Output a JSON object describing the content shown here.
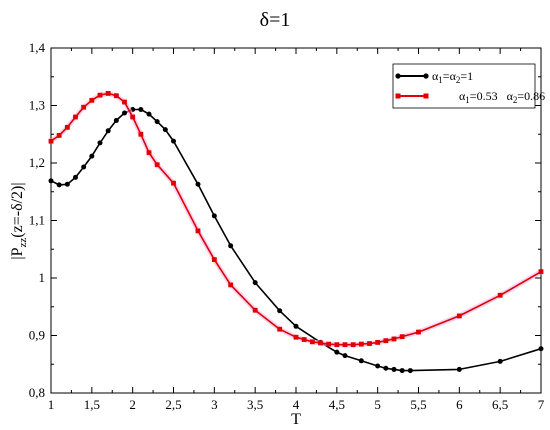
{
  "chart_data": {
    "type": "line",
    "title": "δ=1",
    "xlabel": "T",
    "ylabel": "|P_zz(z=-δ/2)|",
    "xlim": [
      1,
      7
    ],
    "ylim": [
      0.8,
      1.4
    ],
    "xticks": [
      1,
      1.5,
      2,
      2.5,
      3,
      3.5,
      4,
      4.5,
      5,
      5.5,
      6,
      6.5,
      7
    ],
    "xtick_labels": [
      "1",
      "1,5",
      "2",
      "2,5",
      "3",
      "3,5",
      "4",
      "4,5",
      "5",
      "5,5",
      "6",
      "6,5",
      "7"
    ],
    "yticks": [
      0.8,
      0.9,
      1.0,
      1.1,
      1.2,
      1.3,
      1.4
    ],
    "ytick_labels": [
      "0,8",
      "0,9",
      "1",
      "1,1",
      "1,2",
      "1,3",
      "1,4"
    ],
    "grid": false,
    "legend_position": "top-right",
    "series": [
      {
        "name": "α1=α2=1",
        "color": "#000000",
        "marker": "circle",
        "x": [
          1.0,
          1.1,
          1.2,
          1.3,
          1.4,
          1.5,
          1.6,
          1.7,
          1.8,
          1.9,
          2.0,
          2.1,
          2.2,
          2.3,
          2.4,
          2.5,
          2.8,
          3.0,
          3.2,
          3.5,
          3.8,
          4.0,
          4.3,
          4.5,
          4.6,
          4.8,
          5.0,
          5.1,
          5.2,
          5.3,
          5.4,
          6.0,
          6.5,
          7.0
        ],
        "y": [
          1.169,
          1.162,
          1.163,
          1.175,
          1.193,
          1.212,
          1.235,
          1.256,
          1.274,
          1.287,
          1.293,
          1.293,
          1.285,
          1.272,
          1.258,
          1.238,
          1.163,
          1.108,
          1.056,
          0.992,
          0.943,
          0.916,
          0.888,
          0.871,
          0.865,
          0.856,
          0.847,
          0.843,
          0.841,
          0.839,
          0.839,
          0.841,
          0.855,
          0.877
        ]
      },
      {
        "name": "α1=0.53   α2=0.86",
        "color": "#e00000",
        "marker": "square",
        "x": [
          1.0,
          1.1,
          1.2,
          1.3,
          1.4,
          1.5,
          1.6,
          1.7,
          1.8,
          1.9,
          2.0,
          2.1,
          2.2,
          2.3,
          2.5,
          2.8,
          3.0,
          3.2,
          3.5,
          3.8,
          4.0,
          4.1,
          4.2,
          4.3,
          4.4,
          4.5,
          4.6,
          4.7,
          4.8,
          4.9,
          5.0,
          5.1,
          5.2,
          5.3,
          5.5,
          6.0,
          6.5,
          7.0
        ],
        "y": [
          1.238,
          1.248,
          1.262,
          1.28,
          1.297,
          1.309,
          1.318,
          1.321,
          1.317,
          1.306,
          1.28,
          1.25,
          1.218,
          1.197,
          1.165,
          1.082,
          1.032,
          0.988,
          0.944,
          0.911,
          0.897,
          0.893,
          0.889,
          0.887,
          0.885,
          0.884,
          0.884,
          0.884,
          0.885,
          0.886,
          0.888,
          0.891,
          0.894,
          0.898,
          0.906,
          0.934,
          0.97,
          1.011
        ]
      }
    ]
  },
  "legend_entries": [
    {
      "prefix": "α",
      "sub1": "1",
      "mid": "=α",
      "sub2": "2",
      "suffix": "=1"
    },
    {
      "prefix": "α",
      "sub1": "1",
      "mid": "=0.53   α",
      "sub2": "2",
      "suffix": "=0.86"
    }
  ]
}
